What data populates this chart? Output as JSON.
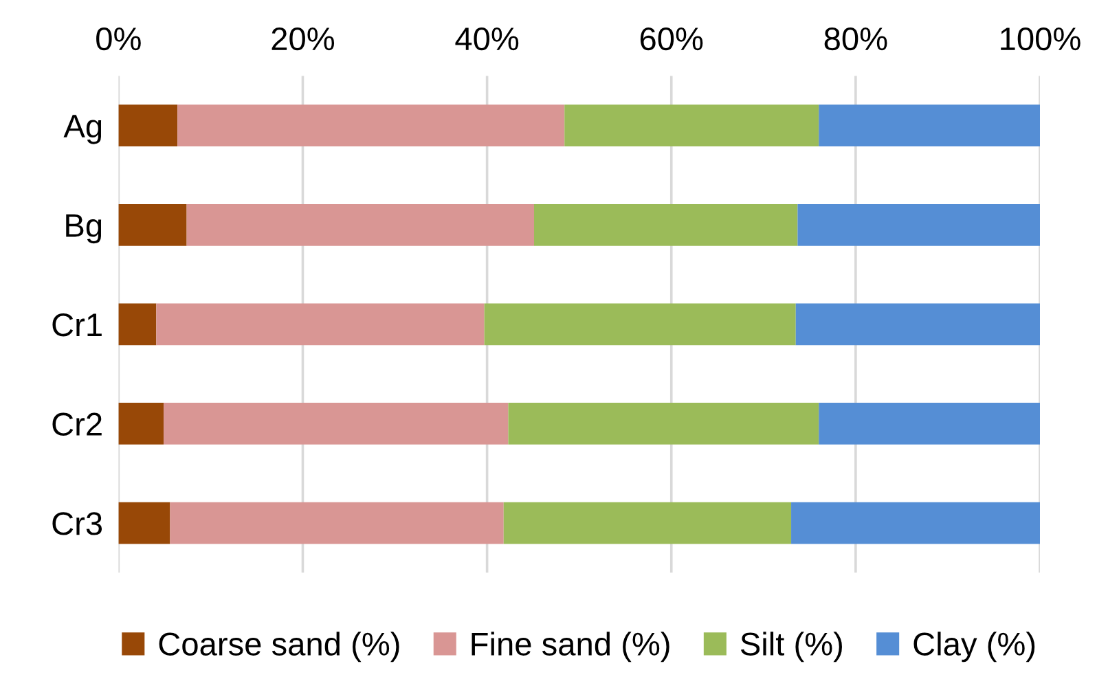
{
  "chart_data": {
    "type": "bar",
    "orientation": "horizontal",
    "stacked": true,
    "categories": [
      "Ag",
      "Bg",
      "Cr1",
      "Cr2",
      "Cr3"
    ],
    "series": [
      {
        "name": "Coarse sand (%)",
        "color": "#984807",
        "values": [
          6.4,
          7.4,
          4.1,
          4.9,
          5.6
        ]
      },
      {
        "name": "Fine sand (%)",
        "color": "#d99694",
        "values": [
          42.0,
          37.7,
          35.6,
          37.4,
          36.2
        ]
      },
      {
        "name": "Silt (%)",
        "color": "#9bbb59",
        "values": [
          27.6,
          28.6,
          33.8,
          33.7,
          31.2
        ]
      },
      {
        "name": "Clay (%)",
        "color": "#558ed5",
        "values": [
          24.0,
          26.3,
          26.5,
          24.0,
          27.0
        ]
      }
    ],
    "xlim": [
      0,
      100
    ],
    "xticks": [
      {
        "value": 0,
        "label": "0%"
      },
      {
        "value": 20,
        "label": "20%"
      },
      {
        "value": 40,
        "label": "40%"
      },
      {
        "value": 60,
        "label": "60%"
      },
      {
        "value": 80,
        "label": "80%"
      },
      {
        "value": 100,
        "label": "100%"
      }
    ],
    "grid": "x",
    "legend": "bottom"
  }
}
